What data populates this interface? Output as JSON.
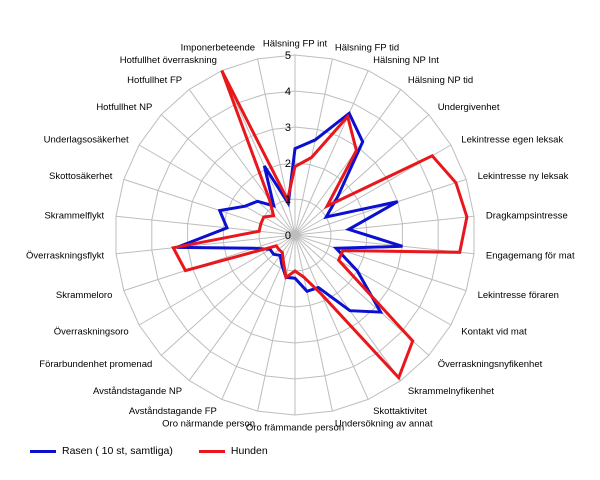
{
  "chart_data": {
    "type": "radar",
    "title": "",
    "rlim": [
      0,
      5
    ],
    "rticks": [
      "0",
      "1",
      "2",
      "3",
      "4",
      "5"
    ],
    "grid": true,
    "legend_position": "bottom-left",
    "categories": [
      "Hälsning FP int",
      "Hälsning FP tid",
      "Hälsning NP Int",
      "Hälsning NP tid",
      "Undergivenhet",
      "Lekintresse egen leksak",
      "Lekintresse ny leksak",
      "Dragkampsintresse",
      "Engagemang för mat",
      "Lekintresse föraren",
      "Kontakt vid mat",
      "Överraskningsnyfikenhet",
      "Skrammelnyfikenhet",
      "Skottaktivitet",
      "Undersökning av annat",
      "Oro främmande person",
      "Oro närmande person",
      "Avståndstagande FP",
      "Avståndstagande NP",
      "Förarbundenhet promenad",
      "Överraskningsoro",
      "Skrammeloro",
      "Överraskningsflykt",
      "Skrammelflykt",
      "Skottosäkerhet",
      "Underlagsosäkerhet",
      "Hotfullhet NP",
      "Hotfullhet FP",
      "Hotfullhet överraskning",
      "Imponerbeteende"
    ],
    "series": [
      {
        "name": "Rasen ( 10 st, samtliga)",
        "color": "#0b0fd0",
        "values": [
          2.4,
          2.7,
          3.7,
          3.2,
          1.6,
          1.0,
          3.0,
          1.5,
          3.0,
          1.2,
          2.0,
          3.2,
          2.6,
          1.6,
          1.6,
          1.2,
          1.2,
          0.9,
          0.7,
          0.8,
          0.8,
          1.2,
          3.3,
          1.9,
          2.2,
          1.6,
          1.4,
          1.0,
          2.1,
          0.9
        ]
      },
      {
        "name": "Hunden",
        "color": "#e8171c",
        "values": [
          1.9,
          2.2,
          3.6,
          2.9,
          1.2,
          4.4,
          4.7,
          4.8,
          4.6,
          1.4,
          1.4,
          4.4,
          4.9,
          1.8,
          1.2,
          1.0,
          1.2,
          0.8,
          0.6,
          0.6,
          0.6,
          3.2,
          3.4,
          1.0,
          1.0,
          1.0,
          0.8,
          1.2,
          5.0,
          1.0
        ]
      }
    ]
  }
}
